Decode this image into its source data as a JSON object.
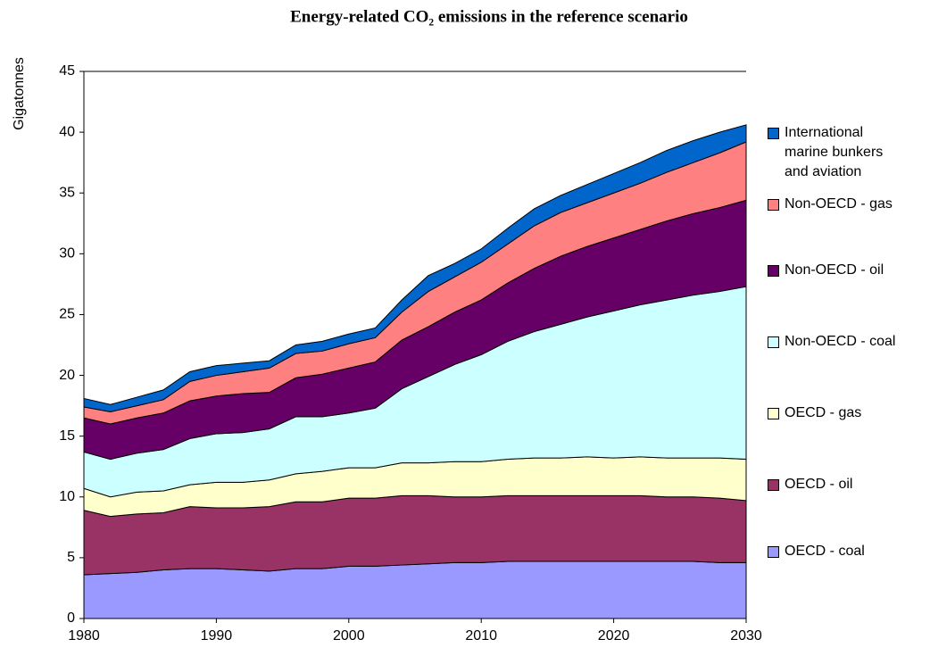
{
  "chart_data": {
    "type": "stacked-area",
    "title": "Energy-related CO₂ emissions in the reference scenario",
    "y_label": "Gigatonnes",
    "x": [
      1980,
      1982,
      1984,
      1986,
      1988,
      1990,
      1992,
      1994,
      1996,
      1998,
      2000,
      2002,
      2004,
      2006,
      2008,
      2010,
      2012,
      2014,
      2016,
      2018,
      2020,
      2022,
      2024,
      2026,
      2028,
      2030
    ],
    "xlim": [
      1980,
      2030
    ],
    "xticks": [
      1980,
      1990,
      2000,
      2010,
      2020,
      2030
    ],
    "ylim": [
      0,
      45
    ],
    "yticks": [
      0,
      5,
      10,
      15,
      20,
      25,
      30,
      35,
      40,
      45
    ],
    "grid": false,
    "legend": "right",
    "series": [
      {
        "name": "OECD - coal",
        "color": "#9999ff",
        "values": [
          3.6,
          3.7,
          3.8,
          4.0,
          4.1,
          4.1,
          4.0,
          3.9,
          4.1,
          4.1,
          4.3,
          4.3,
          4.4,
          4.5,
          4.6,
          4.6,
          4.7,
          4.7,
          4.7,
          4.7,
          4.7,
          4.7,
          4.7,
          4.7,
          4.6,
          4.6
        ]
      },
      {
        "name": "OECD - oil",
        "color": "#993366",
        "values": [
          5.3,
          4.7,
          4.8,
          4.7,
          5.1,
          5.0,
          5.1,
          5.3,
          5.5,
          5.5,
          5.6,
          5.6,
          5.7,
          5.6,
          5.4,
          5.4,
          5.4,
          5.4,
          5.4,
          5.4,
          5.4,
          5.4,
          5.3,
          5.3,
          5.3,
          5.1
        ]
      },
      {
        "name": "OECD - gas",
        "color": "#ffffcc",
        "values": [
          1.8,
          1.6,
          1.8,
          1.8,
          1.8,
          2.1,
          2.1,
          2.2,
          2.3,
          2.5,
          2.5,
          2.5,
          2.7,
          2.7,
          2.9,
          2.9,
          3.0,
          3.1,
          3.1,
          3.2,
          3.1,
          3.2,
          3.2,
          3.2,
          3.3,
          3.4
        ]
      },
      {
        "name": "Non-OECD - coal",
        "color": "#ccffff",
        "values": [
          3.0,
          3.1,
          3.2,
          3.4,
          3.8,
          4.0,
          4.1,
          4.2,
          4.7,
          4.5,
          4.5,
          4.9,
          6.1,
          7.1,
          8.0,
          8.8,
          9.7,
          10.4,
          11.0,
          11.5,
          12.1,
          12.5,
          13.0,
          13.4,
          13.7,
          14.2
        ]
      },
      {
        "name": "Non-OECD - oil",
        "color": "#660066",
        "values": [
          2.8,
          2.9,
          2.9,
          3.0,
          3.1,
          3.1,
          3.2,
          3.0,
          3.2,
          3.5,
          3.7,
          3.8,
          4.0,
          4.1,
          4.3,
          4.5,
          4.8,
          5.2,
          5.6,
          5.8,
          6.0,
          6.2,
          6.5,
          6.7,
          6.9,
          7.1
        ]
      },
      {
        "name": "Non-OECD - gas",
        "color": "#ff8080",
        "values": [
          0.9,
          1.0,
          1.0,
          1.1,
          1.6,
          1.7,
          1.8,
          2.0,
          2.0,
          1.9,
          2.0,
          2.0,
          2.3,
          2.9,
          2.9,
          3.1,
          3.2,
          3.5,
          3.6,
          3.6,
          3.7,
          3.8,
          4.0,
          4.2,
          4.5,
          4.8
        ]
      },
      {
        "name": "International marine bunkers and aviation",
        "color": "#0066cc",
        "values": [
          0.7,
          0.6,
          0.7,
          0.8,
          0.8,
          0.8,
          0.7,
          0.6,
          0.7,
          0.8,
          0.8,
          0.8,
          1.0,
          1.3,
          1.1,
          1.1,
          1.3,
          1.4,
          1.4,
          1.5,
          1.6,
          1.7,
          1.8,
          1.8,
          1.7,
          1.4
        ]
      }
    ]
  }
}
